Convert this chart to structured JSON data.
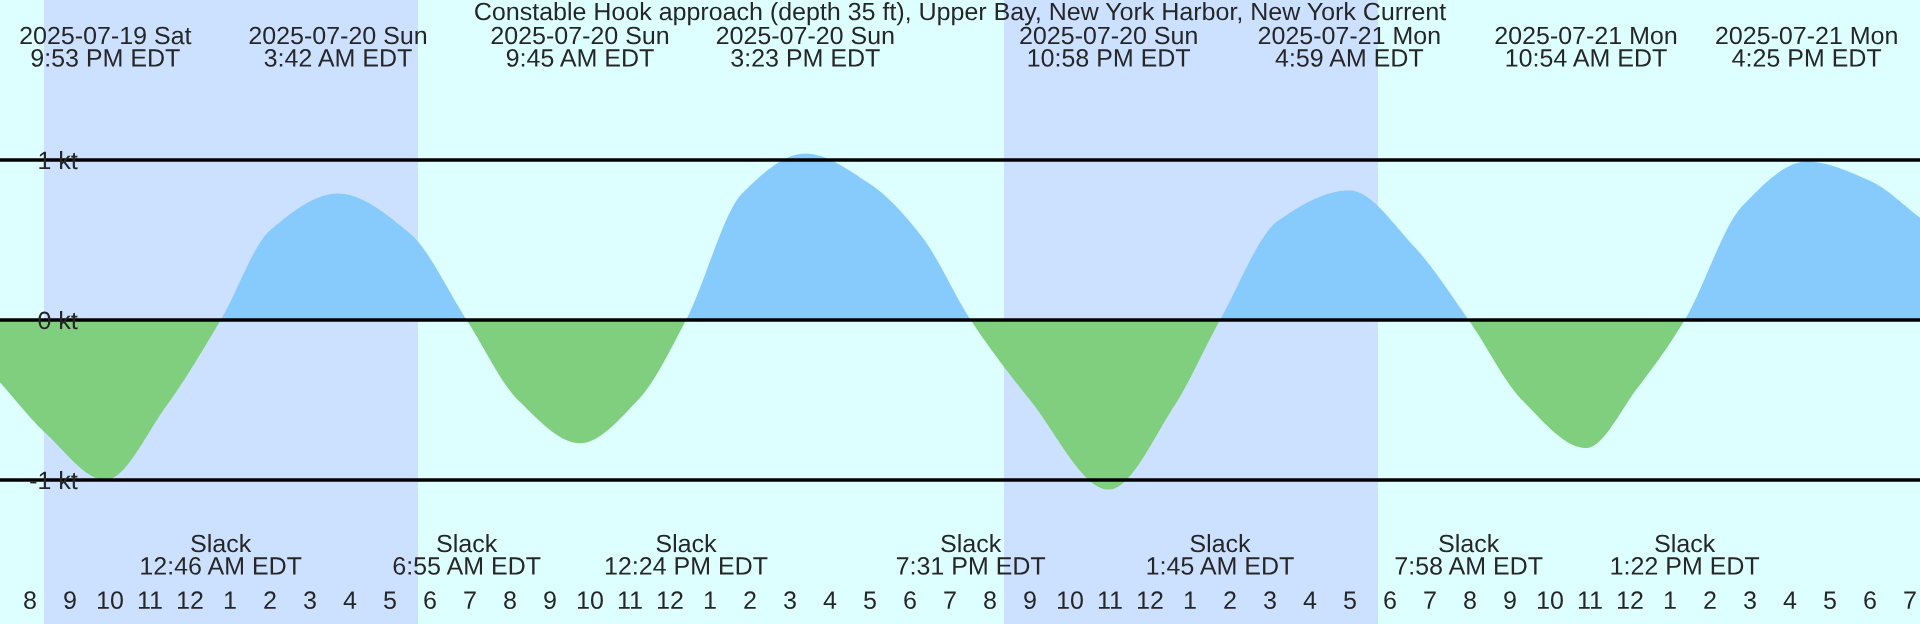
{
  "chart_data": {
    "type": "area",
    "title": "Constable Hook approach (depth 35 ft), Upper Bay, New York Harbor, New York Current",
    "x": [
      "2025-07-19T19:15",
      "2025-07-19T20:24",
      "2025-07-19T21:53",
      "2025-07-19T23:24",
      "2025-07-20T00:46",
      "2025-07-20T02:00",
      "2025-07-20T03:42",
      "2025-07-20T05:30",
      "2025-07-20T06:55",
      "2025-07-20T08:12",
      "2025-07-20T09:45",
      "2025-07-20T11:12",
      "2025-07-20T12:24",
      "2025-07-20T13:48",
      "2025-07-20T15:23",
      "2025-07-20T17:00",
      "2025-07-20T18:18",
      "2025-07-20T19:31",
      "2025-07-20T21:00",
      "2025-07-20T22:58",
      "2025-07-21T00:36",
      "2025-07-21T01:45",
      "2025-07-21T03:12",
      "2025-07-21T04:59",
      "2025-07-21T06:36",
      "2025-07-21T07:58",
      "2025-07-21T09:18",
      "2025-07-21T10:54",
      "2025-07-21T12:12",
      "2025-07-21T13:22",
      "2025-07-21T14:48",
      "2025-07-21T16:25",
      "2025-07-21T18:00",
      "2025-07-21T19:15"
    ],
    "series": [
      {
        "values": [
          -0.39,
          -0.71,
          -1.0,
          -0.54,
          0,
          0.56,
          0.79,
          0.54,
          0,
          -0.5,
          -0.77,
          -0.5,
          0,
          0.79,
          1.04,
          0.85,
          0.52,
          0,
          -0.5,
          -1.06,
          -0.54,
          0,
          0.62,
          0.81,
          0.46,
          0,
          -0.5,
          -0.8,
          -0.42,
          0,
          0.71,
          0.99,
          0.87,
          0.64
        ],
        "colors": [
          "#7fcf7f",
          "#7fcf7f",
          "#7fcf7f",
          "#7fcf7f",
          "#87cbfd",
          "#87cbfd",
          "#87cbfd",
          "#87cbfd",
          "#87cbfd",
          "#7fcf7f",
          "#7fcf7f",
          "#7fcf7f",
          "#7fcf7f",
          "#87cbfd",
          "#87cbfd",
          "#87cbfd",
          "#87cbfd",
          "#87cbfd",
          "#7fcf7f",
          "#7fcf7f",
          "#7fcf7f",
          "#7fcf7f",
          "#87cbfd",
          "#87cbfd",
          "#87cbfd",
          "#87cbfd",
          "#7fcf7f",
          "#7fcf7f",
          "#7fcf7f",
          "#7fcf7f",
          "#87cbfd",
          "#87cbfd",
          "#87cbfd",
          "#87cbfd"
        ]
      }
    ],
    "xlim": [
      "2025-07-19T19:15",
      "2025-07-21T19:15"
    ],
    "xticks": [
      {
        "value": "2025-07-19T20:00",
        "label": "8"
      },
      {
        "value": "2025-07-19T21:00",
        "label": "9"
      },
      {
        "value": "2025-07-19T22:00",
        "label": "10"
      },
      {
        "value": "2025-07-19T23:00",
        "label": "11"
      },
      {
        "value": "2025-07-20T00:00",
        "label": "12"
      },
      {
        "value": "2025-07-20T01:00",
        "label": "1"
      },
      {
        "value": "2025-07-20T02:00",
        "label": "2"
      },
      {
        "value": "2025-07-20T03:00",
        "label": "3"
      },
      {
        "value": "2025-07-20T04:00",
        "label": "4"
      },
      {
        "value": "2025-07-20T05:00",
        "label": "5"
      },
      {
        "value": "2025-07-20T06:00",
        "label": "6"
      },
      {
        "value": "2025-07-20T07:00",
        "label": "7"
      },
      {
        "value": "2025-07-20T08:00",
        "label": "8"
      },
      {
        "value": "2025-07-20T09:00",
        "label": "9"
      },
      {
        "value": "2025-07-20T10:00",
        "label": "10"
      },
      {
        "value": "2025-07-20T11:00",
        "label": "11"
      },
      {
        "value": "2025-07-20T12:00",
        "label": "12"
      },
      {
        "value": "2025-07-20T13:00",
        "label": "1"
      },
      {
        "value": "2025-07-20T14:00",
        "label": "2"
      },
      {
        "value": "2025-07-20T15:00",
        "label": "3"
      },
      {
        "value": "2025-07-20T16:00",
        "label": "4"
      },
      {
        "value": "2025-07-20T17:00",
        "label": "5"
      },
      {
        "value": "2025-07-20T18:00",
        "label": "6"
      },
      {
        "value": "2025-07-20T19:00",
        "label": "7"
      },
      {
        "value": "2025-07-20T20:00",
        "label": "8"
      },
      {
        "value": "2025-07-20T21:00",
        "label": "9"
      },
      {
        "value": "2025-07-20T22:00",
        "label": "10"
      },
      {
        "value": "2025-07-20T23:00",
        "label": "11"
      },
      {
        "value": "2025-07-21T00:00",
        "label": "12"
      },
      {
        "value": "2025-07-21T01:00",
        "label": "1"
      },
      {
        "value": "2025-07-21T02:00",
        "label": "2"
      },
      {
        "value": "2025-07-21T03:00",
        "label": "3"
      },
      {
        "value": "2025-07-21T04:00",
        "label": "4"
      },
      {
        "value": "2025-07-21T05:00",
        "label": "5"
      },
      {
        "value": "2025-07-21T06:00",
        "label": "6"
      },
      {
        "value": "2025-07-21T07:00",
        "label": "7"
      },
      {
        "value": "2025-07-21T08:00",
        "label": "8"
      },
      {
        "value": "2025-07-21T09:00",
        "label": "9"
      },
      {
        "value": "2025-07-21T10:00",
        "label": "10"
      },
      {
        "value": "2025-07-21T11:00",
        "label": "11"
      },
      {
        "value": "2025-07-21T12:00",
        "label": "12"
      },
      {
        "value": "2025-07-21T13:00",
        "label": "1"
      },
      {
        "value": "2025-07-21T14:00",
        "label": "2"
      },
      {
        "value": "2025-07-21T15:00",
        "label": "3"
      },
      {
        "value": "2025-07-21T16:00",
        "label": "4"
      },
      {
        "value": "2025-07-21T17:00",
        "label": "5"
      },
      {
        "value": "2025-07-21T18:00",
        "label": "6"
      },
      {
        "value": "2025-07-21T19:00",
        "label": "7"
      }
    ],
    "ylim": [
      -1.9,
      2
    ],
    "yticks": [
      {
        "value": -1,
        "label": "-1 kt"
      },
      {
        "value": 0,
        "label": "0 kt"
      },
      {
        "value": 1,
        "label": "1 kt"
      }
    ],
    "grid": "y",
    "bands": [
      {
        "axis": "x",
        "from": "2025-07-19T20:21",
        "to": "2025-07-20T05:42",
        "color": "#cce0ff"
      },
      {
        "axis": "x",
        "from": "2025-07-20T20:21",
        "to": "2025-07-21T05:42",
        "color": "#cce0ff"
      }
    ],
    "annotations": [
      "2025-07-19 Sat\n9:53 PM EDT",
      "2025-07-20 Sun\n3:42 AM EDT",
      "2025-07-20 Sun\n9:45 AM EDT",
      "2025-07-20 Sun\n3:23 PM EDT",
      "2025-07-20 Sun\n10:58 PM EDT",
      "2025-07-21 Mon\n4:59 AM EDT",
      "2025-07-21 Mon\n10:54 AM EDT",
      "2025-07-21 Mon\n4:25 PM EDT",
      "Slack\n12:46 AM EDT",
      "Slack\n6:55 AM EDT",
      "Slack\n12:24 PM EDT",
      "Slack\n7:31 PM EDT",
      "Slack\n1:45 AM EDT",
      "Slack\n7:58 AM EDT",
      "Slack\n1:22 PM EDT"
    ]
  }
}
